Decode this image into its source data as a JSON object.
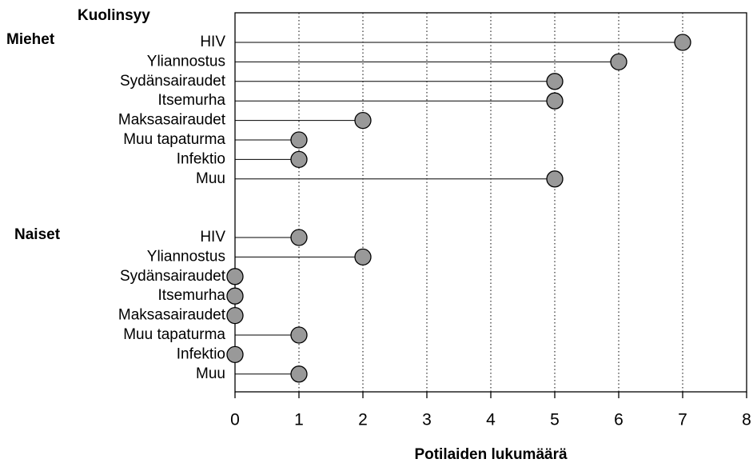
{
  "chart_data": {
    "type": "lollipop",
    "ylabel": "Kuolinsyy",
    "xlabel": "Potilaiden lukumäärä",
    "groups": [
      {
        "name": "Miehet",
        "categories": [
          "HIV",
          "Yliannostus",
          "Sydänsairaudet",
          "Itsemurha",
          "Maksasairaudet",
          "Muu tapaturma",
          "Infektio",
          "Muu"
        ],
        "values": [
          7,
          6,
          5,
          5,
          2,
          1,
          1,
          5
        ]
      },
      {
        "name": "Naiset",
        "categories": [
          "HIV",
          "Yliannostus",
          "Sydänsairaudet",
          "Itsemurha",
          "Maksasairaudet",
          "Muu tapaturma",
          "Infektio",
          "Muu"
        ],
        "values": [
          1,
          2,
          0,
          0,
          0,
          1,
          0,
          1
        ]
      }
    ],
    "color": "#999999",
    "xlim": [
      0,
      8
    ],
    "xticks": [
      0,
      1,
      2,
      3,
      4,
      5,
      6,
      7,
      8
    ],
    "grid": true
  }
}
